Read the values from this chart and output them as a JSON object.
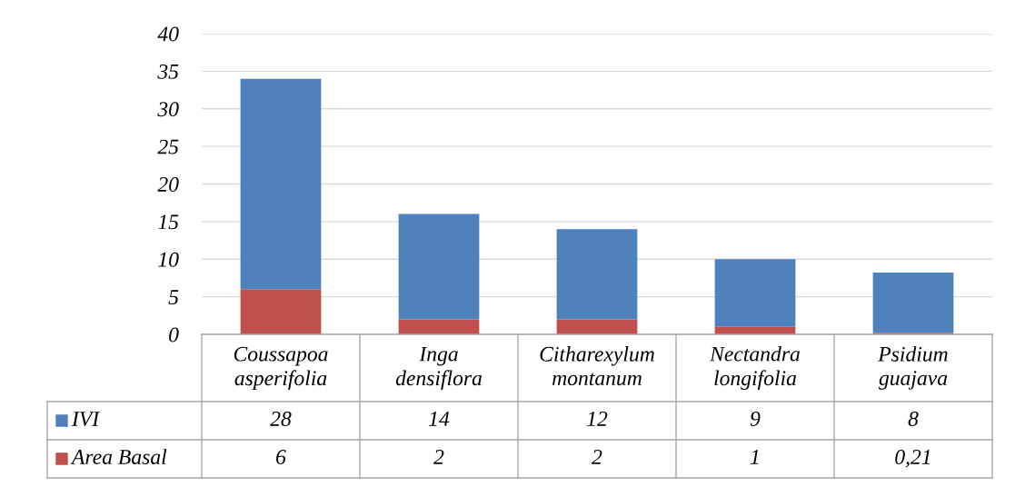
{
  "chart_data": {
    "type": "bar",
    "stacked": true,
    "categories": [
      "Coussapoa\nasperifolia",
      "Inga\ndensiflora",
      "Citharexylum\nmontanum",
      "Nectandra\nlongifolia",
      "Psidium\nguajava"
    ],
    "series": [
      {
        "name": "Area Basal",
        "color": "#c0504d",
        "values": [
          6,
          2,
          2,
          1,
          0.21
        ],
        "value_labels": [
          "6",
          "2",
          "2",
          "1",
          "0,21"
        ]
      },
      {
        "name": "IVI",
        "color": "#4f81bd",
        "values": [
          28,
          14,
          12,
          9,
          8
        ],
        "value_labels": [
          "28",
          "14",
          "12",
          "9",
          "8"
        ]
      }
    ],
    "ylim": [
      0,
      40
    ],
    "yticks": [
      0,
      5,
      10,
      15,
      20,
      25,
      30,
      35,
      40
    ],
    "grid": "y",
    "legend": "bottom left"
  }
}
